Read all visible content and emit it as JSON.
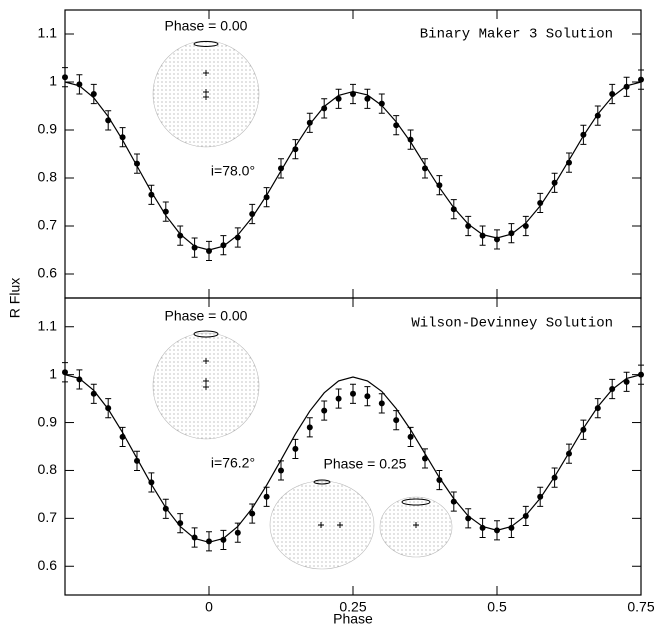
{
  "chart_data": [
    {
      "type": "line",
      "ylabel": "R Flux",
      "annotations": [
        "Binary Maker 3 Solution",
        "Phase = 0.00",
        "i=78.0°"
      ],
      "x": [
        -0.25,
        -0.225,
        -0.2,
        -0.175,
        -0.15,
        -0.125,
        -0.1,
        -0.075,
        -0.05,
        -0.025,
        0,
        0.025,
        0.05,
        0.075,
        0.1,
        0.125,
        0.15,
        0.175,
        0.2,
        0.225,
        0.25,
        0.275,
        0.3,
        0.325,
        0.35,
        0.375,
        0.4,
        0.425,
        0.45,
        0.475,
        0.5,
        0.525,
        0.55,
        0.575,
        0.6,
        0.625,
        0.65,
        0.675,
        0.7,
        0.725,
        0.75
      ],
      "series": [
        {
          "color": "#000000",
          "markers": true,
          "error": 0.02,
          "values": [
            1.01,
            0.995,
            0.975,
            0.92,
            0.885,
            0.83,
            0.765,
            0.73,
            0.68,
            0.655,
            0.648,
            0.66,
            0.676,
            0.725,
            0.76,
            0.82,
            0.86,
            0.915,
            0.945,
            0.965,
            0.975,
            0.965,
            0.955,
            0.91,
            0.88,
            0.82,
            0.785,
            0.735,
            0.7,
            0.68,
            0.672,
            0.685,
            0.7,
            0.748,
            0.79,
            0.832,
            0.89,
            0.93,
            0.975,
            0.99,
            1.005
          ]
        },
        {
          "color": "#000000",
          "markers": false,
          "values": [
            1.0,
            0.992,
            0.967,
            0.928,
            0.879,
            0.825,
            0.771,
            0.722,
            0.683,
            0.658,
            0.65,
            0.658,
            0.681,
            0.718,
            0.764,
            0.815,
            0.866,
            0.912,
            0.949,
            0.972,
            0.98,
            0.973,
            0.951,
            0.917,
            0.875,
            0.827,
            0.78,
            0.738,
            0.704,
            0.682,
            0.675,
            0.683,
            0.706,
            0.742,
            0.787,
            0.837,
            0.888,
            0.933,
            0.969,
            0.992,
            1.0
          ]
        }
      ],
      "xlim": [
        -0.25,
        0.75
      ],
      "ylim": [
        0.55,
        1.15
      ],
      "yticks": [
        0.6,
        0.7,
        0.8,
        0.9,
        1,
        1.1
      ]
    },
    {
      "type": "line",
      "xlabel": "Phase",
      "annotations": [
        "Wilson-Devinney Solution",
        "Phase = 0.00",
        "i=76.2°",
        "Phase = 0.25"
      ],
      "x": [
        -0.25,
        -0.225,
        -0.2,
        -0.175,
        -0.15,
        -0.125,
        -0.1,
        -0.075,
        -0.05,
        -0.025,
        0,
        0.025,
        0.05,
        0.075,
        0.1,
        0.125,
        0.15,
        0.175,
        0.2,
        0.225,
        0.25,
        0.275,
        0.3,
        0.325,
        0.35,
        0.375,
        0.4,
        0.425,
        0.45,
        0.475,
        0.5,
        0.525,
        0.55,
        0.575,
        0.6,
        0.625,
        0.65,
        0.675,
        0.7,
        0.725,
        0.75
      ],
      "series": [
        {
          "color": "#000000",
          "markers": true,
          "error": 0.02,
          "values": [
            1.005,
            0.99,
            0.96,
            0.93,
            0.87,
            0.82,
            0.775,
            0.72,
            0.69,
            0.66,
            0.652,
            0.655,
            0.67,
            0.71,
            0.745,
            0.8,
            0.845,
            0.89,
            0.925,
            0.95,
            0.96,
            0.955,
            0.94,
            0.905,
            0.87,
            0.825,
            0.78,
            0.735,
            0.7,
            0.68,
            0.675,
            0.68,
            0.705,
            0.745,
            0.785,
            0.835,
            0.885,
            0.93,
            0.97,
            0.985,
            1.0
          ]
        },
        {
          "color": "#000000",
          "markers": false,
          "values": [
            1.0,
            0.992,
            0.967,
            0.928,
            0.879,
            0.825,
            0.771,
            0.722,
            0.683,
            0.658,
            0.65,
            0.658,
            0.683,
            0.721,
            0.769,
            0.822,
            0.876,
            0.924,
            0.962,
            0.987,
            0.995,
            0.987,
            0.965,
            0.929,
            0.885,
            0.835,
            0.785,
            0.741,
            0.705,
            0.683,
            0.675,
            0.683,
            0.706,
            0.742,
            0.787,
            0.837,
            0.888,
            0.933,
            0.969,
            0.992,
            1.0
          ]
        }
      ],
      "xlim": [
        -0.25,
        0.75
      ],
      "ylim": [
        0.54,
        1.16
      ],
      "xticks": [
        0,
        0.25,
        0.5,
        0.75
      ],
      "yticks": [
        0.6,
        0.7,
        0.8,
        0.9,
        1,
        1.1
      ]
    }
  ]
}
